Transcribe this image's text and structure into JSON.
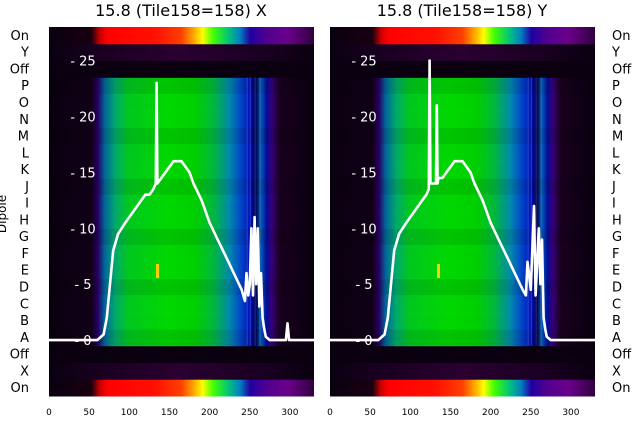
{
  "chart_data": [
    {
      "type": "heatmap",
      "title": "15.8 (Tile158=158) X",
      "ylabel": "Dipole",
      "xlim": [
        0,
        330
      ],
      "x_ticks": [
        0,
        50,
        100,
        150,
        200,
        250,
        300
      ],
      "rows": [
        "On",
        "X",
        "Off",
        "A",
        "B",
        "C",
        "D",
        "E",
        "F",
        "G",
        "H",
        "I",
        "J",
        "K",
        "L",
        "M",
        "N",
        "O",
        "P",
        "Off",
        "Y",
        "On"
      ],
      "overlay_ticks": [
        0,
        5,
        10,
        15,
        20,
        25
      ],
      "overlay_ylim": [
        -5,
        28
      ],
      "spectrum": {
        "x": [
          0,
          60,
          68,
          72,
          76,
          80,
          86,
          95,
          105,
          115,
          120,
          125,
          130,
          133,
          134,
          135,
          140,
          145,
          150,
          155,
          160,
          165,
          170,
          175,
          180,
          190,
          200,
          210,
          220,
          230,
          240,
          244,
          246,
          248,
          250,
          252,
          254,
          256,
          258,
          260,
          262,
          264,
          266,
          268,
          270,
          275,
          280,
          290,
          295,
          297,
          299,
          301,
          310,
          330
        ],
        "y": [
          0,
          0,
          0.5,
          2,
          5,
          8,
          9.5,
          10.5,
          11.5,
          12.5,
          13,
          13,
          13.5,
          14,
          23,
          14,
          14.5,
          15,
          15.5,
          16,
          16,
          16,
          15.5,
          15,
          14,
          12.5,
          10.5,
          9,
          7.5,
          6,
          4.5,
          3.5,
          6,
          4,
          5,
          10,
          4,
          11,
          5,
          10,
          3,
          6,
          2,
          1,
          0.3,
          0,
          0,
          0,
          0,
          1.5,
          0,
          0,
          0,
          0
        ]
      }
    },
    {
      "type": "heatmap",
      "title": "15.8 (Tile158=158) Y",
      "xlim": [
        0,
        330
      ],
      "x_ticks": [
        0,
        50,
        100,
        150,
        200,
        250,
        300
      ],
      "rows": [
        "On",
        "X",
        "Off",
        "A",
        "B",
        "C",
        "D",
        "E",
        "F",
        "G",
        "H",
        "I",
        "J",
        "K",
        "L",
        "M",
        "N",
        "O",
        "P",
        "Off",
        "Y",
        "On"
      ],
      "overlay_ticks": [
        0,
        5,
        10,
        15,
        20,
        25
      ],
      "overlay_ylim": [
        -5,
        28
      ],
      "spectrum": {
        "x": [
          0,
          60,
          68,
          72,
          76,
          80,
          86,
          95,
          105,
          115,
          120,
          123,
          124,
          125,
          128,
          132,
          133,
          134,
          135,
          140,
          145,
          150,
          155,
          160,
          165,
          170,
          175,
          180,
          190,
          200,
          210,
          220,
          230,
          240,
          244,
          246,
          250,
          254,
          256,
          260,
          262,
          264,
          266,
          268,
          270,
          275,
          280,
          330
        ],
        "y": [
          0,
          0,
          0.5,
          2,
          5,
          8,
          9.5,
          10.5,
          11.5,
          12.5,
          13,
          13.5,
          25,
          14,
          14,
          14,
          21,
          14,
          14.5,
          14.5,
          15,
          15.5,
          16,
          16,
          16,
          15.5,
          15,
          14,
          12.5,
          10.5,
          9,
          7.5,
          6,
          4.5,
          4,
          7,
          4.5,
          12,
          4,
          10,
          5,
          9,
          2,
          1,
          0.3,
          0,
          0,
          0
        ]
      }
    }
  ]
}
